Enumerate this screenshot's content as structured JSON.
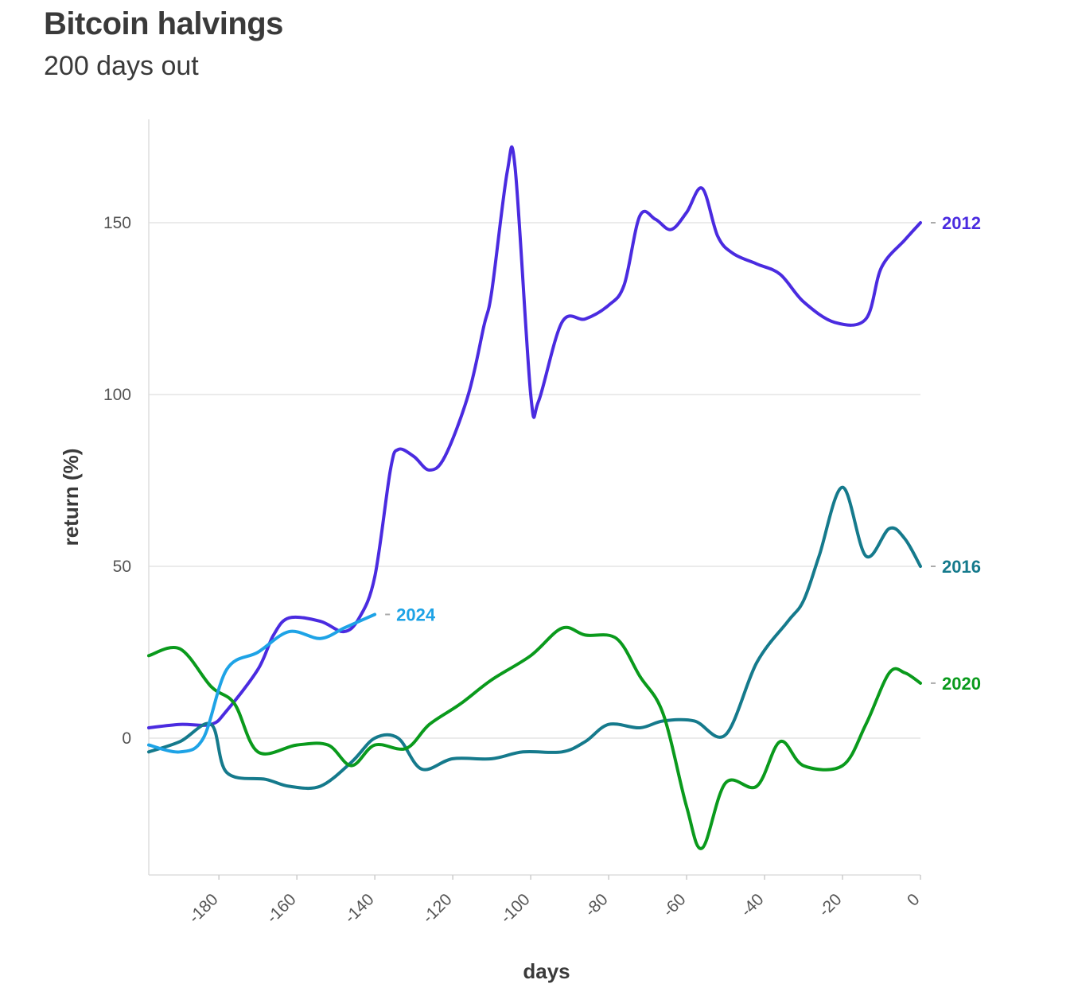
{
  "chart_data": {
    "type": "line",
    "title": "Bitcoin halvings",
    "subtitle": "200 days out",
    "xlabel": "days",
    "ylabel": "return (%)",
    "xlim": [
      -198,
      0
    ],
    "ylim": [
      -40,
      180
    ],
    "x_ticks": [
      -180,
      -160,
      -140,
      -120,
      -100,
      -80,
      -60,
      -40,
      -20,
      0
    ],
    "y_ticks": [
      0,
      50,
      100,
      150
    ],
    "grid": "horizontal",
    "series": [
      {
        "name": "2012",
        "color": "#4a2be0",
        "points": [
          [
            -198,
            3
          ],
          [
            -190,
            4
          ],
          [
            -182,
            4
          ],
          [
            -178,
            8
          ],
          [
            -170,
            20
          ],
          [
            -166,
            30
          ],
          [
            -162,
            35
          ],
          [
            -154,
            34
          ],
          [
            -148,
            31
          ],
          [
            -144,
            35
          ],
          [
            -140,
            47
          ],
          [
            -136,
            78
          ],
          [
            -134,
            84
          ],
          [
            -130,
            82
          ],
          [
            -126,
            78
          ],
          [
            -122,
            82
          ],
          [
            -116,
            100
          ],
          [
            -112,
            120
          ],
          [
            -110,
            130
          ],
          [
            -106,
            165
          ],
          [
            -104,
            166
          ],
          [
            -100,
            100
          ],
          [
            -98,
            98
          ],
          [
            -92,
            121
          ],
          [
            -86,
            122
          ],
          [
            -80,
            126
          ],
          [
            -76,
            132
          ],
          [
            -72,
            152
          ],
          [
            -68,
            151
          ],
          [
            -64,
            148
          ],
          [
            -60,
            153
          ],
          [
            -56,
            160
          ],
          [
            -52,
            146
          ],
          [
            -48,
            141
          ],
          [
            -42,
            138
          ],
          [
            -36,
            135
          ],
          [
            -30,
            127
          ],
          [
            -22,
            121
          ],
          [
            -14,
            122
          ],
          [
            -10,
            137
          ],
          [
            -4,
            145
          ],
          [
            0,
            150
          ]
        ]
      },
      {
        "name": "2016",
        "color": "#157a8c",
        "points": [
          [
            -198,
            -4
          ],
          [
            -190,
            -1
          ],
          [
            -182,
            4
          ],
          [
            -178,
            -10
          ],
          [
            -168,
            -12
          ],
          [
            -162,
            -14
          ],
          [
            -154,
            -14
          ],
          [
            -146,
            -7
          ],
          [
            -140,
            0
          ],
          [
            -134,
            0
          ],
          [
            -128,
            -9
          ],
          [
            -120,
            -6
          ],
          [
            -110,
            -6
          ],
          [
            -102,
            -4
          ],
          [
            -92,
            -4
          ],
          [
            -86,
            -1
          ],
          [
            -80,
            4
          ],
          [
            -72,
            3
          ],
          [
            -66,
            5
          ],
          [
            -58,
            5
          ],
          [
            -50,
            1
          ],
          [
            -42,
            22
          ],
          [
            -34,
            34
          ],
          [
            -30,
            40
          ],
          [
            -26,
            53
          ],
          [
            -20,
            73
          ],
          [
            -14,
            53
          ],
          [
            -8,
            61
          ],
          [
            -4,
            58
          ],
          [
            0,
            50
          ]
        ]
      },
      {
        "name": "2020",
        "color": "#0a9a1c",
        "points": [
          [
            -198,
            24
          ],
          [
            -190,
            26
          ],
          [
            -182,
            15
          ],
          [
            -176,
            10
          ],
          [
            -170,
            -4
          ],
          [
            -160,
            -2
          ],
          [
            -152,
            -2
          ],
          [
            -146,
            -8
          ],
          [
            -140,
            -2
          ],
          [
            -132,
            -3
          ],
          [
            -126,
            4
          ],
          [
            -118,
            10
          ],
          [
            -110,
            17
          ],
          [
            -100,
            24
          ],
          [
            -92,
            32
          ],
          [
            -86,
            30
          ],
          [
            -78,
            29
          ],
          [
            -72,
            18
          ],
          [
            -66,
            7
          ],
          [
            -60,
            -20
          ],
          [
            -56,
            -32
          ],
          [
            -50,
            -13
          ],
          [
            -42,
            -14
          ],
          [
            -36,
            -1
          ],
          [
            -30,
            -8
          ],
          [
            -20,
            -8
          ],
          [
            -14,
            4
          ],
          [
            -8,
            19
          ],
          [
            -4,
            19
          ],
          [
            0,
            16
          ]
        ]
      },
      {
        "name": "2024",
        "color": "#1ea3e6",
        "points": [
          [
            -198,
            -2
          ],
          [
            -190,
            -4
          ],
          [
            -184,
            0
          ],
          [
            -178,
            20
          ],
          [
            -170,
            25
          ],
          [
            -162,
            31
          ],
          [
            -154,
            29
          ],
          [
            -148,
            32
          ],
          [
            -144,
            34
          ],
          [
            -140,
            36
          ]
        ]
      }
    ]
  }
}
